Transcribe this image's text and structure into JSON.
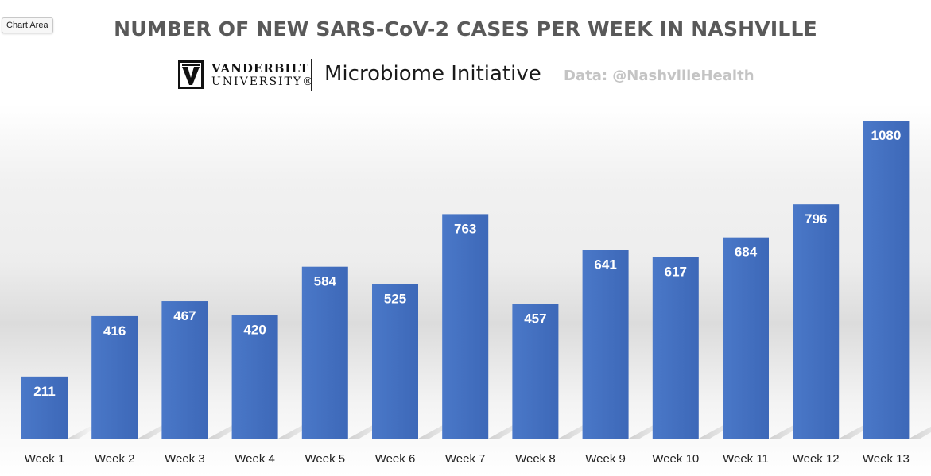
{
  "tooltip": "Chart Area",
  "logo": {
    "name": "VANDERBILT",
    "sub": "UNIVERSITY®",
    "initiative": "Microbiome Initiative"
  },
  "source": "Data: @NashvilleHealth",
  "colors": {
    "bar": "#4472c4",
    "bar_dark": "#3a64b3",
    "title": "#595959"
  },
  "chart_data": {
    "type": "bar",
    "title": "NUMBER OF NEW SARS-CoV-2 CASES PER WEEK IN NASHVILLE",
    "xlabel": "",
    "ylabel": "",
    "categories": [
      "Week 1",
      "Week 2",
      "Week 3",
      "Week 4",
      "Week 5",
      "Week 6",
      "Week 7",
      "Week 8",
      "Week 9",
      "Week 10",
      "Week 11",
      "Week 12",
      "Week 13"
    ],
    "values": [
      211,
      416,
      467,
      420,
      584,
      525,
      763,
      457,
      641,
      617,
      684,
      796,
      1080
    ],
    "ylim": [
      0,
      1080
    ],
    "grid": false,
    "data_labels": true
  }
}
